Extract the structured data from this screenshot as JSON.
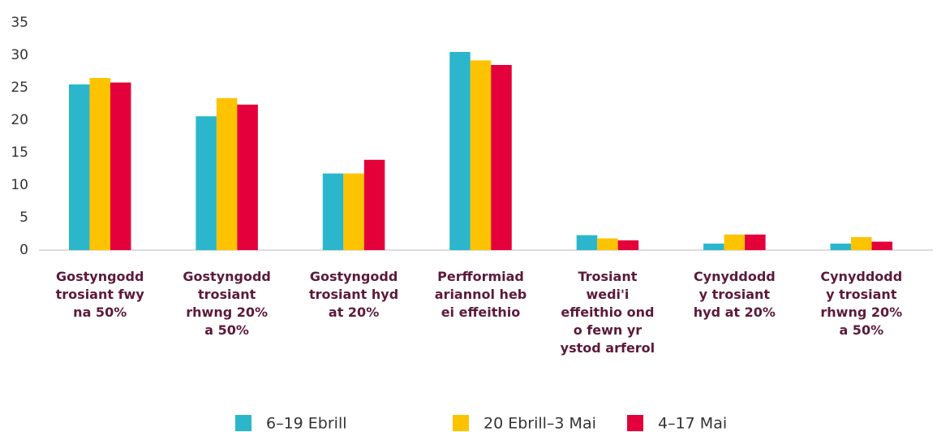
{
  "chart_data": {
    "type": "bar",
    "categories": [
      "Gostyngodd\ntrosiant fwy\nna 50%",
      "Gostyngodd\ntrosiant\nrhwng 20%\na 50%",
      "Gostyngodd\ntrosiant hyd\nat 20%",
      "Perfformiad\nariannol heb\nei effeithio",
      "Trosiant\nwedi'i\neffeithio ond\no fewn yr\nystod arferol",
      "Cynyddodd\ny trosiant\nhyd at 20%",
      "Cynyddodd\ny trosiant\nrhwng 20%\na 50%"
    ],
    "series": [
      {
        "name": "6–19 Ebrill",
        "color": "#2bb6cb",
        "values": [
          25.5,
          20.6,
          11.8,
          30.5,
          2.3,
          1.0,
          1.0
        ]
      },
      {
        "name": "20 Ebrill–3 Mai",
        "color": "#fdc300",
        "values": [
          26.5,
          23.4,
          11.8,
          29.2,
          1.8,
          2.4,
          2.0
        ]
      },
      {
        "name": "4–17 Mai",
        "color": "#e4003b",
        "values": [
          25.8,
          22.4,
          13.9,
          28.5,
          1.5,
          2.4,
          1.3
        ]
      }
    ],
    "ylim": [
      0,
      35
    ],
    "yticks": [
      0,
      5,
      10,
      15,
      20,
      25,
      30,
      35
    ],
    "grid": false,
    "legend": "bottom"
  }
}
